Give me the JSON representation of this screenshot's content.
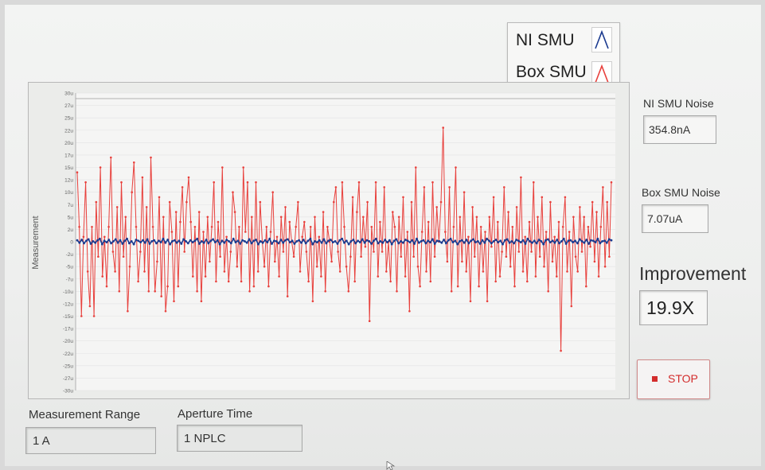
{
  "legend": {
    "items": [
      {
        "label": "NI SMU",
        "color": "#1a3a8f",
        "icon": "line-plot-icon"
      },
      {
        "label": "Box SMU",
        "color": "#e8403c",
        "icon": "line-plot-icon"
      }
    ]
  },
  "indicators": {
    "ni_noise_label": "NI SMU Noise",
    "ni_noise_value": "354.8nA",
    "box_noise_label": "Box SMU Noise",
    "box_noise_value": "7.07uA",
    "improvement_label": "Improvement",
    "improvement_value": "19.9X"
  },
  "controls": {
    "range_label": "Measurement Range",
    "range_value": "1 A",
    "aperture_label": "Aperture Time",
    "aperture_value": "1 NPLC",
    "stop_label": "STOP"
  },
  "chart_data": {
    "type": "line",
    "title": "",
    "xlabel": "",
    "ylabel": "Measurement",
    "ylim": [
      -30,
      30
    ],
    "y_unit": "u",
    "yticks": [
      "30u",
      "27u",
      "25u",
      "22u",
      "20u",
      "17u",
      "15u",
      "12u",
      "10u",
      "7u",
      "5u",
      "2u",
      "0",
      "-2u",
      "-5u",
      "-7u",
      "-10u",
      "-12u",
      "-15u",
      "-17u",
      "-20u",
      "-22u",
      "-25u",
      "-27u",
      "-30u"
    ],
    "grid": true,
    "legend_position": "top-right",
    "series": [
      {
        "name": "NI SMU",
        "color": "#1a3a8f",
        "values": [
          0.3,
          -0.2,
          0.4,
          -0.3,
          0.2,
          0.5,
          -0.4,
          0.1,
          -0.2,
          0.3,
          0.6,
          -0.5,
          0.2,
          -0.1,
          0.4,
          -0.3,
          0.1,
          0.5,
          -0.2,
          0.3,
          -0.4,
          0.2,
          0.6,
          -0.3,
          0.1,
          -0.5,
          0.4,
          0.2,
          -0.1,
          0.3,
          -0.2,
          0.5,
          -0.4,
          0.1,
          0.3,
          -0.3,
          0.2,
          -0.1,
          0.6,
          -0.2,
          0.4,
          -0.5,
          0.1,
          0.3,
          -0.2,
          0.2,
          -0.4,
          0.5,
          0.1,
          -0.3,
          0.3,
          -0.1,
          0.2,
          0.6,
          -0.4,
          0.1,
          -0.2,
          0.4,
          -0.3,
          0.2,
          0.5,
          -0.1,
          0.3,
          -0.5,
          0.2,
          -0.2,
          0.4,
          0.1,
          -0.3,
          0.6,
          -0.1,
          0.2,
          -0.4,
          0.3,
          0.1,
          -0.2,
          0.5,
          -0.3,
          0.2,
          0.4,
          -0.5,
          0.1,
          -0.2,
          0.3,
          -0.1,
          0.6,
          -0.4,
          0.2,
          0.1,
          -0.3,
          0.4,
          -0.2,
          0.3,
          0.5,
          -0.1,
          0.2,
          -0.4,
          0.1,
          0.3,
          -0.2,
          0.4,
          -0.3,
          0.2,
          0.6,
          -0.5,
          0.1,
          -0.1,
          0.3,
          -0.2,
          0.5,
          -0.3,
          0.2,
          0.4,
          -0.1,
          0.1,
          -0.4,
          0.3,
          0.6,
          -0.2,
          0.2,
          -0.5,
          0.1,
          0.4,
          -0.3,
          0.2,
          -0.1,
          0.5,
          -0.2,
          0.3,
          0.1,
          -0.4,
          0.2,
          0.6,
          -0.3,
          0.1,
          -0.2,
          0.4,
          -0.1,
          0.3,
          -0.5,
          0.2,
          0.5,
          -0.3,
          0.1,
          -0.2,
          0.4,
          0.2,
          -0.1,
          0.3,
          -0.4,
          0.6,
          -0.2,
          0.1,
          0.3,
          -0.3,
          0.2,
          -0.1,
          0.5,
          -0.4,
          0.2,
          0.1,
          -0.2,
          0.4,
          -0.3,
          0.3,
          0.6,
          -0.1,
          0.2,
          -0.5,
          0.1,
          0.3,
          -0.2,
          0.4,
          -0.3,
          0.2,
          0.5,
          -0.1,
          0.1,
          -0.4,
          0.3,
          -0.2,
          0.6,
          0.2,
          -0.3,
          0.1,
          0.4,
          -0.1,
          0.2,
          -0.5,
          0.3,
          0.5,
          -0.2,
          0.1,
          -0.3,
          0.4,
          0.2,
          -0.1,
          0.3,
          -0.4,
          0.6,
          0.1,
          -0.2,
          0.2,
          -0.3,
          0.4,
          0.1,
          -0.5,
          0.3,
          0.5,
          -0.1,
          0.2,
          -0.2,
          0.4,
          -0.3,
          0.1,
          0.6,
          -0.4,
          0.2,
          0.3,
          -0.1,
          0.2,
          -0.3,
          0.5,
          0.1,
          -0.2,
          0.4,
          -0.4,
          0.3,
          0.2,
          -0.1,
          0.6,
          -0.3,
          0.1,
          0.2,
          -0.2,
          0.5,
          0.3
        ]
      },
      {
        "name": "Box SMU",
        "color": "#e8403c",
        "values": [
          14,
          3,
          -15,
          1,
          12,
          -6,
          -13,
          3,
          -15,
          8,
          -3,
          15,
          -7,
          1,
          -9,
          3,
          17,
          -2,
          -6,
          7,
          -10,
          12,
          -3,
          5,
          -14,
          -5,
          10,
          16,
          3,
          -8,
          -2,
          13,
          -6,
          7,
          -10,
          17,
          3,
          -10,
          -4,
          9,
          -11,
          5,
          -14,
          -9,
          8,
          2,
          -12,
          6,
          -9,
          4,
          11,
          -2,
          8,
          13,
          4,
          -7,
          3,
          -10,
          6,
          -12,
          2,
          -7,
          5,
          -4,
          3,
          12,
          -8,
          4,
          -3,
          15,
          -6,
          1,
          -8,
          -2,
          10,
          6,
          -5,
          3,
          -8,
          15,
          2,
          12,
          -10,
          5,
          -9,
          12,
          -6,
          8,
          0,
          -5,
          3,
          -9,
          2,
          10,
          -4,
          1,
          -7,
          5,
          -2,
          7,
          -11,
          4,
          0,
          -3,
          3,
          8,
          -6,
          1,
          4,
          -2,
          -8,
          3,
          -12,
          5,
          -5,
          1,
          -7,
          6,
          -10,
          3,
          0,
          -4,
          8,
          11,
          -2,
          -6,
          12,
          3,
          -5,
          -10,
          -3,
          9,
          -8,
          6,
          12,
          -3,
          5,
          -1,
          8,
          -16,
          3,
          -2,
          12,
          -7,
          4,
          -2,
          11,
          -6,
          0,
          -8,
          6,
          3,
          -10,
          5,
          -3,
          9,
          -7,
          2,
          -14,
          8,
          -3,
          15,
          -5,
          -9,
          2,
          11,
          -6,
          4,
          -8,
          12,
          -3,
          7,
          0,
          8,
          23,
          2,
          -4,
          11,
          -10,
          3,
          15,
          -9,
          5,
          -4,
          10,
          -6,
          1,
          -12,
          7,
          -3,
          5,
          -9,
          3,
          -6,
          2,
          -12,
          5,
          -1,
          9,
          -8,
          4,
          -7,
          -2,
          11,
          -3,
          6,
          -5,
          3,
          -9,
          7,
          -2,
          13,
          -6,
          1,
          -8,
          4,
          -2,
          12,
          -7,
          5,
          -3,
          9,
          -5,
          2,
          -10,
          8,
          -4,
          1,
          -7,
          4,
          -22,
          3,
          9,
          -6,
          2,
          -13,
          5,
          -3,
          -6,
          7,
          -2,
          5,
          -9,
          3,
          -1,
          8,
          -4,
          6,
          -7,
          3,
          11,
          -5,
          8,
          -3,
          12
        ]
      }
    ]
  }
}
